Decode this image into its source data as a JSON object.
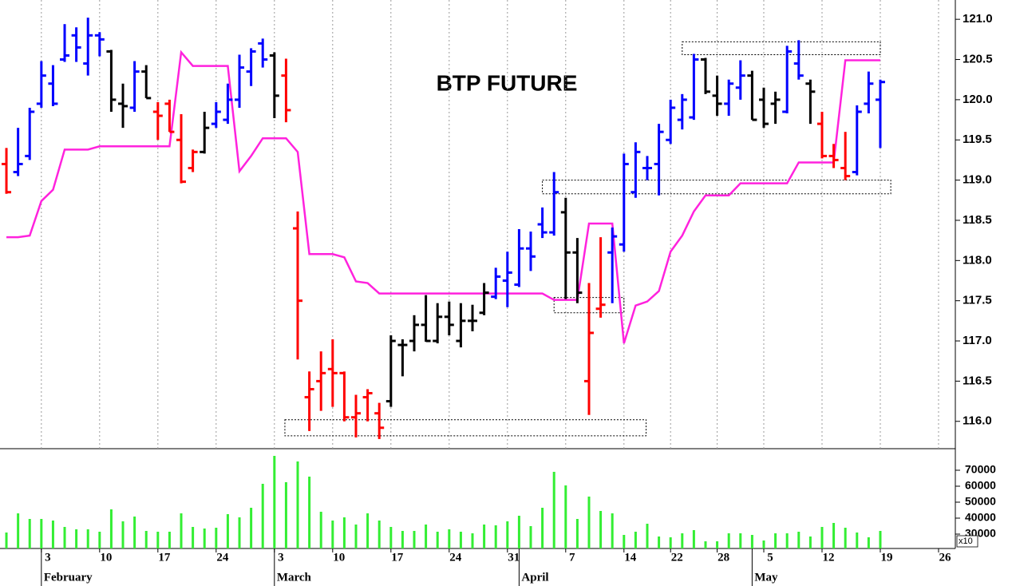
{
  "chart_data": [
    {
      "type": "ohlc",
      "title": "BTP FUTURE",
      "x": [
        0,
        1,
        2,
        3,
        4,
        5,
        6,
        7,
        8,
        9,
        10,
        11,
        12,
        13,
        14,
        15,
        16,
        17,
        18,
        19,
        20,
        21,
        22,
        23,
        24,
        25,
        26,
        27,
        28,
        29,
        30,
        31,
        32,
        33,
        34,
        35,
        36,
        37,
        38,
        39,
        40,
        41,
        42,
        43,
        44,
        45,
        46,
        47,
        48,
        49,
        50,
        51,
        52,
        53,
        54,
        55,
        56,
        57,
        58,
        59,
        60,
        61,
        62,
        63,
        64,
        65,
        66,
        67,
        68,
        69,
        70,
        71,
        72,
        73,
        74,
        75
      ],
      "open": [
        119.2,
        119.1,
        119.3,
        119.95,
        120.2,
        120.5,
        120.8,
        120.45,
        120.8,
        120.6,
        119.95,
        119.9,
        120.35,
        119.85,
        119.95,
        119.5,
        119.15,
        119.35,
        119.7,
        119.75,
        120.0,
        120.35,
        120.7,
        120.55,
        120.3,
        118.4,
        116.3,
        116.5,
        116.65,
        116.6,
        116.05,
        116.3,
        116.1,
        116.25,
        116.95,
        117.0,
        117.2,
        117.0,
        117.3,
        117.0,
        117.25,
        117.35,
        117.55,
        117.75,
        117.7,
        118.15,
        118.45,
        118.35,
        118.6,
        118.1,
        116.5,
        117.4,
        118.1,
        118.2,
        118.85,
        119.15,
        119.2,
        119.5,
        119.75,
        119.78,
        120.5,
        120.05,
        119.95,
        120.15,
        120.3,
        120.0,
        119.95,
        119.85,
        120.45,
        120.2,
        119.7,
        119.3,
        119.15,
        119.1,
        119.95,
        120.0
      ],
      "high": [
        119.4,
        119.65,
        119.9,
        120.48,
        120.43,
        120.94,
        120.9,
        121.02,
        120.84,
        120.62,
        120.2,
        120.48,
        120.43,
        119.97,
        120.0,
        119.82,
        119.38,
        119.85,
        119.97,
        120.2,
        120.56,
        120.64,
        120.76,
        120.59,
        120.51,
        118.61,
        116.62,
        116.87,
        117.02,
        116.62,
        116.33,
        116.4,
        116.23,
        117.07,
        117.02,
        117.32,
        117.57,
        117.47,
        117.49,
        117.47,
        117.45,
        117.72,
        117.91,
        118.11,
        118.39,
        118.36,
        118.66,
        119.1,
        118.78,
        118.28,
        117.72,
        118.29,
        118.41,
        119.33,
        119.47,
        119.3,
        119.7,
        120.0,
        120.07,
        120.57,
        120.52,
        120.3,
        120.25,
        120.49,
        120.36,
        120.15,
        120.1,
        120.67,
        120.74,
        120.25,
        119.85,
        119.45,
        119.6,
        119.93,
        120.35,
        120.25
      ],
      "low": [
        118.83,
        119.05,
        119.25,
        119.9,
        119.92,
        120.47,
        120.47,
        120.3,
        120.54,
        119.85,
        119.65,
        119.85,
        120.02,
        119.5,
        119.6,
        118.96,
        119.1,
        119.33,
        119.65,
        119.7,
        119.9,
        120.17,
        120.4,
        119.77,
        119.72,
        116.77,
        115.88,
        116.13,
        116.18,
        116.0,
        115.8,
        116.0,
        115.78,
        116.18,
        116.56,
        116.87,
        116.99,
        116.97,
        117.07,
        116.92,
        117.12,
        117.32,
        117.52,
        117.42,
        117.67,
        117.87,
        118.28,
        118.31,
        117.52,
        117.47,
        116.08,
        117.29,
        117.47,
        118.11,
        118.78,
        119.0,
        118.81,
        119.45,
        119.63,
        119.75,
        120.07,
        119.8,
        119.8,
        120.0,
        119.75,
        119.65,
        119.7,
        119.83,
        120.25,
        119.7,
        119.27,
        119.15,
        119.0,
        119.06,
        119.83,
        119.4
      ],
      "close": [
        118.85,
        119.2,
        119.85,
        120.3,
        119.95,
        120.55,
        120.65,
        120.8,
        120.75,
        120.0,
        119.92,
        120.35,
        120.02,
        119.8,
        119.6,
        118.98,
        119.35,
        119.65,
        119.85,
        120.0,
        120.4,
        120.6,
        120.5,
        120.05,
        119.87,
        117.5,
        116.4,
        116.6,
        116.6,
        116.05,
        116.1,
        116.35,
        115.92,
        117.0,
        116.95,
        117.2,
        117.0,
        117.3,
        117.2,
        117.25,
        117.25,
        117.6,
        117.8,
        117.85,
        118.15,
        118.05,
        118.35,
        118.85,
        118.1,
        117.6,
        117.1,
        117.45,
        118.3,
        119.2,
        119.35,
        119.15,
        119.6,
        119.9,
        120.0,
        120.5,
        120.1,
        119.95,
        120.2,
        120.3,
        119.75,
        119.7,
        120.0,
        120.6,
        120.3,
        120.1,
        119.3,
        119.25,
        119.05,
        119.85,
        120.2,
        120.22
      ],
      "bar_colors": [
        "#ff0000",
        "#0000ff",
        "#0000ff",
        "#0000ff",
        "#0000ff",
        "#0000ff",
        "#0000ff",
        "#0000ff",
        "#0000ff",
        "#000000",
        "#000000",
        "#0000ff",
        "#000000",
        "#ff0000",
        "#ff0000",
        "#ff0000",
        "#ff0000",
        "#000000",
        "#0000ff",
        "#0000ff",
        "#0000ff",
        "#0000ff",
        "#0000ff",
        "#000000",
        "#ff0000",
        "#ff0000",
        "#ff0000",
        "#ff0000",
        "#ff0000",
        "#ff0000",
        "#ff0000",
        "#ff0000",
        "#ff0000",
        "#000000",
        "#000000",
        "#000000",
        "#000000",
        "#000000",
        "#000000",
        "#000000",
        "#000000",
        "#000000",
        "#0000ff",
        "#0000ff",
        "#0000ff",
        "#0000ff",
        "#0000ff",
        "#0000ff",
        "#000000",
        "#000000",
        "#ff0000",
        "#ff0000",
        "#0000ff",
        "#0000ff",
        "#0000ff",
        "#0000ff",
        "#0000ff",
        "#0000ff",
        "#0000ff",
        "#0000ff",
        "#000000",
        "#000000",
        "#0000ff",
        "#0000ff",
        "#000000",
        "#000000",
        "#000000",
        "#0000ff",
        "#0000ff",
        "#000000",
        "#ff0000",
        "#ff0000",
        "#ff0000",
        "#0000ff",
        "#0000ff",
        "#0000ff"
      ],
      "line": {
        "color": "#ff22dd",
        "values": [
          118.29,
          118.29,
          118.31,
          118.74,
          118.88,
          119.38,
          119.38,
          119.38,
          119.42,
          119.42,
          119.42,
          119.42,
          119.42,
          119.42,
          119.42,
          120.59,
          120.42,
          120.42,
          120.42,
          120.42,
          119.11,
          119.3,
          119.52,
          119.52,
          119.52,
          119.35,
          118.08,
          118.08,
          118.08,
          118.04,
          117.74,
          117.72,
          117.59,
          117.59,
          117.59,
          117.59,
          117.59,
          117.59,
          117.59,
          117.59,
          117.59,
          117.59,
          117.59,
          117.59,
          117.59,
          117.59,
          117.59,
          117.51,
          117.51,
          117.51,
          118.46,
          118.46,
          118.46,
          116.97,
          117.44,
          117.49,
          117.62,
          118.11,
          118.31,
          118.61,
          118.81,
          118.81,
          118.81,
          118.96,
          118.96,
          118.96,
          118.96,
          118.96,
          119.22,
          119.22,
          119.22,
          119.22,
          120.49,
          120.49,
          120.49,
          120.49
        ]
      },
      "zones": [
        {
          "x": [
            23.9,
            54.9
          ],
          "y": [
            115.82,
            116.02
          ]
        },
        {
          "x": [
            46,
            75.9
          ],
          "y": [
            118.83,
            119.0
          ]
        },
        {
          "x": [
            47,
            53
          ],
          "y": [
            117.35,
            117.54
          ]
        },
        {
          "x": [
            58,
            75
          ],
          "y": [
            120.56,
            120.72
          ]
        }
      ],
      "xlim": [
        -0.55,
        81.44
      ],
      "ylim": [
        115.66,
        121.24
      ],
      "yticks": [
        {
          "value": 116,
          "label": "116.0"
        },
        116.5,
        {
          "value": 117,
          "label": "117.0"
        },
        117.5,
        {
          "value": 118,
          "label": "118.0"
        },
        118.5,
        {
          "value": 119,
          "label": "119.0"
        },
        119.5,
        {
          "value": 120,
          "label": "120.0"
        },
        120.5,
        {
          "value": 121,
          "label": "121.0"
        }
      ],
      "xticks": [
        3,
        {
          "value": 8,
          "label": "10"
        },
        {
          "value": 13,
          "label": "17"
        },
        {
          "value": 18,
          "label": "24"
        },
        {
          "value": 23,
          "label": "3"
        },
        {
          "value": 28,
          "label": "10"
        },
        {
          "value": 33,
          "label": "17"
        },
        {
          "value": 38,
          "label": "24"
        },
        {
          "value": 43,
          "label": "31"
        },
        {
          "value": 48,
          "label": "7"
        },
        {
          "value": 53,
          "label": "14"
        },
        {
          "value": 57,
          "label": "22"
        },
        {
          "value": 61,
          "label": "28"
        },
        {
          "value": 65,
          "label": "5"
        },
        {
          "value": 70,
          "label": "12"
        },
        {
          "value": 75,
          "label": "19"
        },
        {
          "value": 80,
          "label": "26"
        }
      ],
      "month_ticks": [
        {
          "value": 3,
          "label": "February"
        },
        {
          "value": 23,
          "label": "March"
        },
        {
          "value": 44,
          "label": "April"
        },
        {
          "value": 64,
          "label": "May"
        }
      ],
      "grid": true
    },
    {
      "type": "volume",
      "color": "#33ee33",
      "scale_label": "x10",
      "x": [
        0,
        1,
        2,
        3,
        4,
        5,
        6,
        7,
        8,
        9,
        10,
        11,
        12,
        13,
        14,
        15,
        16,
        17,
        18,
        19,
        20,
        21,
        22,
        23,
        24,
        25,
        26,
        27,
        28,
        29,
        30,
        31,
        32,
        33,
        34,
        35,
        36,
        37,
        38,
        39,
        40,
        41,
        42,
        43,
        44,
        45,
        46,
        47,
        48,
        49,
        50,
        51,
        52,
        53,
        54,
        55,
        56,
        57,
        58,
        59,
        60,
        61,
        62,
        63,
        64,
        65,
        66,
        67,
        68,
        69,
        70,
        71,
        72,
        73,
        74,
        75
      ],
      "values": [
        31000,
        43000,
        39500,
        39500,
        38500,
        34500,
        33000,
        33000,
        31500,
        45500,
        38000,
        41000,
        32000,
        31500,
        31500,
        43000,
        34500,
        33500,
        34000,
        42500,
        40500,
        46500,
        61500,
        79000,
        62500,
        75500,
        66000,
        44000,
        38500,
        40500,
        36000,
        43000,
        38500,
        34500,
        32000,
        32000,
        36000,
        31500,
        33000,
        31500,
        30500,
        36000,
        35500,
        38000,
        41500,
        35000,
        46500,
        69000,
        60500,
        39500,
        53500,
        44500,
        43000,
        29500,
        31500,
        36500,
        28500,
        28000,
        30500,
        32500,
        25500,
        25500,
        30500,
        30500,
        29500,
        26000,
        30500,
        30500,
        31500,
        28500,
        34500,
        37000,
        34000,
        31000,
        28000,
        32000
      ],
      "xlim": [
        -0.55,
        81.44
      ],
      "ylim": [
        21000,
        83500
      ],
      "yticks": [
        30000,
        40000,
        50000,
        60000,
        70000
      ]
    }
  ]
}
